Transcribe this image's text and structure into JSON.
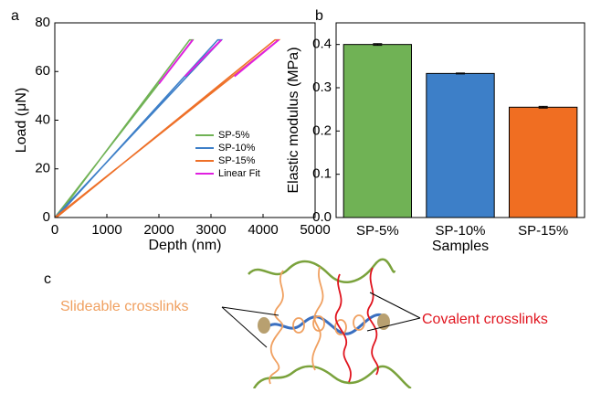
{
  "panels": [
    "a",
    "b",
    "c"
  ],
  "chart_data": [
    {
      "type": "line",
      "xlabel": "Depth (nm)",
      "ylabel": "Load (μN)",
      "xlim": [
        0,
        5000
      ],
      "ylim": [
        0,
        80
      ],
      "xticks": [
        0,
        1000,
        2000,
        3000,
        4000,
        5000
      ],
      "yticks": [
        0,
        20,
        40,
        60,
        80
      ],
      "legend": "lower right",
      "series": [
        {
          "name": "SP-5%",
          "color": "#70b255",
          "x": [
            0,
            2650,
            2590,
            30
          ],
          "values": [
            0,
            73,
            73,
            0
          ]
        },
        {
          "name": "SP-10%",
          "color": "#3d7fc8",
          "x": [
            0,
            3200,
            3130,
            30
          ],
          "values": [
            0,
            73,
            73,
            0
          ]
        },
        {
          "name": "SP-15%",
          "color": "#ee7028",
          "x": [
            0,
            4300,
            4230,
            30
          ],
          "values": [
            0,
            73,
            73,
            0
          ]
        },
        {
          "name": "Linear Fit",
          "color": "#e020e0",
          "x": [
            2000,
            2650,
            null,
            2500,
            3200,
            null,
            3450,
            4300
          ],
          "values": [
            55,
            73,
            null,
            58,
            73,
            null,
            58,
            73
          ]
        }
      ]
    },
    {
      "type": "bar",
      "xlabel": "Samples",
      "ylabel": "Elastic modulus (MPa)",
      "ylim": [
        0,
        0.45
      ],
      "yticks": [
        {
          "value": 0,
          "label": "0.0"
        },
        0.1,
        0.2,
        0.3,
        0.4
      ],
      "categories": [
        "SP-5%",
        "SP-10%",
        "SP-15%"
      ],
      "values": [
        0.4,
        0.333,
        0.255
      ],
      "errors": [
        0.002,
        0.001,
        0.002
      ],
      "colors": [
        "#70b255",
        "#3d7fc8",
        "#f06e22"
      ]
    }
  ],
  "diagram": {
    "slideable_label": "Slideable crosslinks",
    "covalent_label": "Covalent crosslinks"
  }
}
